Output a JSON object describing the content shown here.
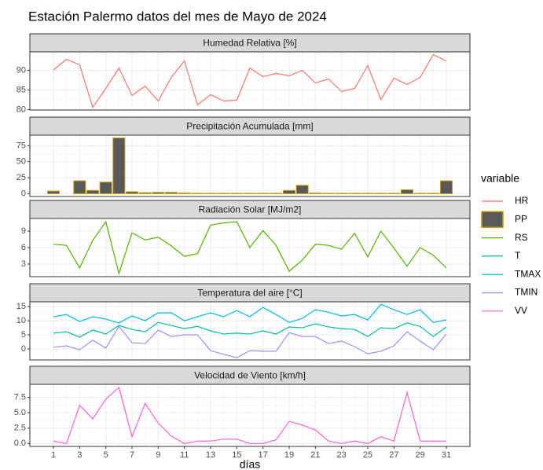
{
  "chart_data": {
    "type": "facet",
    "title": "Estación Palermo datos del mes de Mayo de 2024",
    "x_label": "días",
    "legend_title": "variable",
    "x": [
      1,
      2,
      3,
      4,
      5,
      6,
      7,
      8,
      9,
      10,
      11,
      12,
      13,
      14,
      15,
      16,
      17,
      18,
      19,
      20,
      21,
      22,
      23,
      24,
      25,
      26,
      27,
      28,
      29,
      30,
      31
    ],
    "xlim": [
      -0.8,
      32.8
    ],
    "xticks": [
      1,
      3,
      5,
      7,
      9,
      11,
      13,
      15,
      17,
      19,
      21,
      23,
      25,
      27,
      29,
      31
    ],
    "grid": true,
    "panels": [
      {
        "type": "line",
        "title": "Humedad Relativa [%]",
        "ylim": [
          79.9,
          94.7
        ],
        "yticks": [
          80,
          85,
          90
        ],
        "series": [
          {
            "name": "HR",
            "color": "#F8766D",
            "values": [
              90.1,
              92.8,
              91.4,
              80.6,
              85.4,
              90.6,
              83.6,
              86,
              82.2,
              88.2,
              92.4,
              81.2,
              83.8,
              82.2,
              82.4,
              90.6,
              88.4,
              89.2,
              88.6,
              90,
              86.8,
              87.8,
              84.6,
              85.4,
              91.2,
              82.6,
              88,
              86.4,
              88.2,
              94,
              92.4
            ]
          }
        ]
      },
      {
        "type": "bar",
        "title": "Precipitación Acumulada [mm]",
        "ylim": [
          -4.4,
          91.4
        ],
        "yticks": [
          0,
          25,
          50,
          75
        ],
        "series": [
          {
            "name": "PP",
            "color": "#595959",
            "edge_color": "#C49A00",
            "values": [
              4,
              0,
              20,
              5,
              18,
              87,
              3,
              1.5,
              2,
              2,
              1,
              0.5,
              0.5,
              0.5,
              0.5,
              0.5,
              0.5,
              0.5,
              5,
              13,
              1,
              0.5,
              0.5,
              0.5,
              0.5,
              0.5,
              0.5,
              6,
              0.5,
              0.5,
              20
            ]
          }
        ]
      },
      {
        "type": "line",
        "title": "Radiación Solar [MJ/m2]",
        "ylim": [
          0.7,
          11.3
        ],
        "yticks": [
          3,
          6,
          9
        ],
        "series": [
          {
            "name": "RS",
            "color": "#53B400",
            "values": [
              6.6,
              6.4,
              2.3,
              7.3,
              10.7,
              1.3,
              8.7,
              7.4,
              7.9,
              6.3,
              4.4,
              4.9,
              10.1,
              10.5,
              10.7,
              6,
              9.1,
              6.4,
              1.7,
              3.7,
              6.6,
              6.4,
              5.7,
              8.6,
              4.3,
              9,
              5.9,
              2.6,
              6,
              4.6,
              2.3
            ]
          }
        ]
      },
      {
        "type": "line",
        "title": "Temperatura del aire [°C]",
        "ylim": [
          -3.9,
          16.7
        ],
        "yticks": [
          0,
          5,
          10,
          15
        ],
        "series": [
          {
            "name": "T",
            "color": "#00C094",
            "values": [
              5.6,
              6.1,
              4.2,
              6.7,
              5.3,
              8.3,
              6.9,
              6.1,
              9.4,
              8.3,
              7.2,
              8,
              6.4,
              5.3,
              5.6,
              5.3,
              6.4,
              5.3,
              7.8,
              7.5,
              8.9,
              7.8,
              7.2,
              6.9,
              4.4,
              7.5,
              7.2,
              9.2,
              8,
              4.4,
              7.8
            ]
          },
          {
            "name": "TMAX",
            "color": "#00B6EB",
            "values": [
              11.4,
              12.2,
              9.7,
              11.4,
              10.6,
              9.2,
              11.7,
              10,
              12.8,
              12.8,
              10,
              11.4,
              12.8,
              11.4,
              13.6,
              11.4,
              14.7,
              12.2,
              9.4,
              10.8,
              13.9,
              13,
              11.7,
              12.2,
              10.3,
              15.8,
              13.9,
              12.2,
              13.9,
              9.4,
              10.3
            ]
          },
          {
            "name": "TMIN",
            "color": "#A58AFF",
            "values": [
              0.6,
              1.1,
              -0.3,
              3.1,
              0.3,
              8,
              2.2,
              1.9,
              6.7,
              4.4,
              5,
              5,
              -0.6,
              -1.9,
              -3.1,
              -0.6,
              -0.8,
              -0.8,
              5.8,
              4.4,
              4.4,
              1.9,
              2.8,
              0.8,
              -1.7,
              -0.8,
              1.1,
              6.1,
              2.8,
              -0.3,
              5.3
            ]
          }
        ]
      },
      {
        "type": "line",
        "title": "Velocidad de Viento [km/h]",
        "ylim": [
          -0.47,
          9.6
        ],
        "yticks": [
          {
            "value": 0,
            "label": "0.0"
          },
          {
            "value": 2.5,
            "label": "2.5"
          },
          {
            "value": 5,
            "label": "5.0"
          },
          {
            "value": 7.5,
            "label": "7.5"
          }
        ],
        "series": [
          {
            "name": "VV",
            "color": "#FB61D7",
            "values": [
              0.4,
              0,
              6.2,
              4,
              7.2,
              9.1,
              1.1,
              6.5,
              3.3,
              1.2,
              0,
              0.4,
              0.4,
              0.7,
              0.7,
              0,
              0,
              0.6,
              3.6,
              3,
              2.2,
              0.4,
              0,
              0.4,
              0,
              1.1,
              0.4,
              8.3,
              0.4,
              0.4,
              0.4
            ]
          }
        ]
      }
    ]
  }
}
